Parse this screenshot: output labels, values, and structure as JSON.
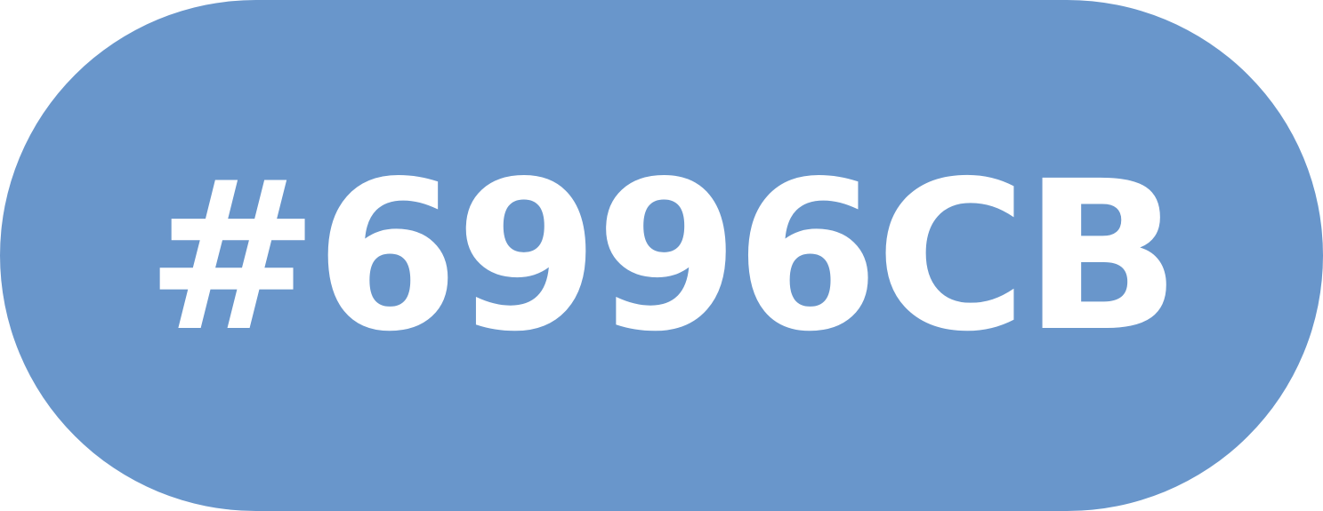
{
  "swatch": {
    "label": "#6996CB",
    "background_color": "#6996CB",
    "text_color": "#FFFFFF"
  }
}
